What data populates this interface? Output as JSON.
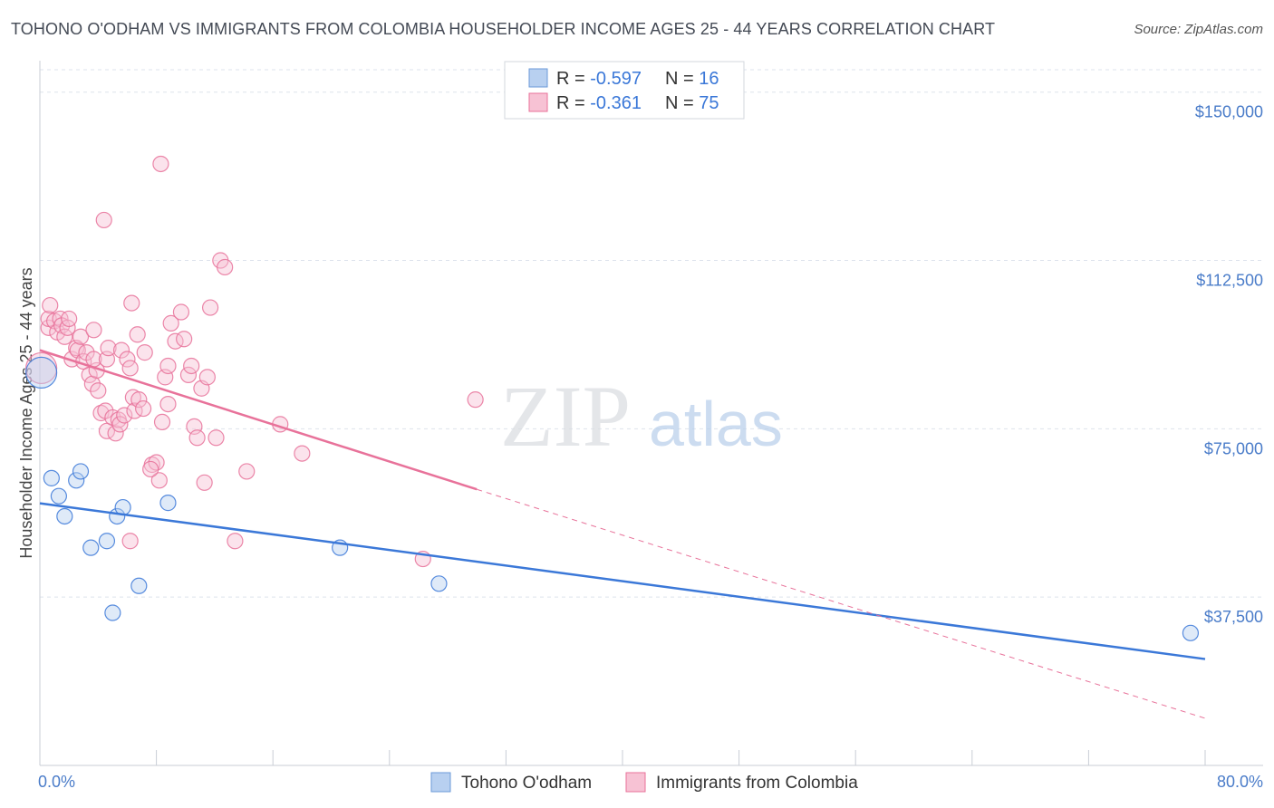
{
  "header": {
    "title": "TOHONO O'ODHAM VS IMMIGRANTS FROM COLOMBIA HOUSEHOLDER INCOME AGES 25 - 44 YEARS CORRELATION CHART",
    "source": "Source: ZipAtlas.com"
  },
  "watermark": {
    "zip": "ZIP",
    "atlas": "atlas"
  },
  "colors": {
    "blue": "#3b78d8",
    "blue_fill": "#b8d0f0",
    "pink": "#e8729a",
    "pink_fill": "#f7c2d4",
    "tick_label": "#4a7cc9",
    "grid": "#dde3ec"
  },
  "legend": {
    "rows": [
      {
        "r_label": "R = ",
        "r_value": "-0.597",
        "n_label": "N = ",
        "n_value": "16"
      },
      {
        "r_label": "R = ",
        "r_value": "-0.361",
        "n_label": "N = ",
        "n_value": "75"
      }
    ]
  },
  "chart_data": {
    "type": "scatter",
    "title": "TOHONO O'ODHAM VS IMMIGRANTS FROM COLOMBIA HOUSEHOLDER INCOME AGES 25 - 44 YEARS CORRELATION CHART",
    "xlabel": "",
    "ylabel": "Householder Income Ages 25 - 44 years",
    "xlim": [
      0,
      80
    ],
    "ylim": [
      0,
      157000
    ],
    "x_tick_labels": [
      "0.0%",
      "80.0%"
    ],
    "y_ticks": [
      37500,
      75000,
      112500,
      150000
    ],
    "y_tick_labels": [
      "$37,500",
      "$75,000",
      "$112,500",
      "$150,000"
    ],
    "grid": true,
    "legend_position": "top-center",
    "series": [
      {
        "name": "Tohono O'odham",
        "color": "#3b78d8",
        "points": [
          [
            0.1,
            87500
          ],
          [
            0.8,
            64000
          ],
          [
            1.3,
            60000
          ],
          [
            1.7,
            55500
          ],
          [
            2.5,
            63500
          ],
          [
            2.8,
            65500
          ],
          [
            3.5,
            48500
          ],
          [
            4.6,
            50000
          ],
          [
            5.3,
            55500
          ],
          [
            5.7,
            57500
          ],
          [
            6.8,
            40000
          ],
          [
            8.8,
            58500
          ],
          [
            5.0,
            34000
          ],
          [
            20.6,
            48500
          ],
          [
            27.4,
            40500
          ],
          [
            79.0,
            29500
          ]
        ],
        "trend": {
          "x": [
            0,
            80
          ],
          "y": [
            58400,
            23700
          ],
          "style": "solid"
        }
      },
      {
        "name": "Immigrants from Colombia",
        "color": "#e8729a",
        "points": [
          [
            0.1,
            88500
          ],
          [
            0.6,
            97500
          ],
          [
            0.6,
            99500
          ],
          [
            0.7,
            102500
          ],
          [
            1.0,
            99000
          ],
          [
            1.2,
            96500
          ],
          [
            1.4,
            99500
          ],
          [
            1.5,
            98000
          ],
          [
            1.7,
            95500
          ],
          [
            1.9,
            97500
          ],
          [
            2.0,
            99500
          ],
          [
            2.2,
            90500
          ],
          [
            2.5,
            93000
          ],
          [
            2.6,
            92500
          ],
          [
            2.8,
            95500
          ],
          [
            3.0,
            90000
          ],
          [
            3.2,
            92000
          ],
          [
            3.4,
            87000
          ],
          [
            3.6,
            85000
          ],
          [
            3.9,
            88000
          ],
          [
            3.7,
            90500
          ],
          [
            4.0,
            83500
          ],
          [
            4.2,
            78500
          ],
          [
            4.5,
            79000
          ],
          [
            4.6,
            74500
          ],
          [
            5.0,
            77500
          ],
          [
            5.2,
            74000
          ],
          [
            5.4,
            77000
          ],
          [
            5.5,
            76000
          ],
          [
            5.8,
            78000
          ],
          [
            4.6,
            90500
          ],
          [
            4.7,
            93000
          ],
          [
            5.6,
            92500
          ],
          [
            6.0,
            90500
          ],
          [
            6.2,
            88500
          ],
          [
            6.4,
            82000
          ],
          [
            6.5,
            79000
          ],
          [
            6.8,
            81500
          ],
          [
            7.1,
            79500
          ],
          [
            7.7,
            67000
          ],
          [
            8.0,
            67500
          ],
          [
            8.2,
            63500
          ],
          [
            8.4,
            76500
          ],
          [
            8.6,
            86500
          ],
          [
            8.8,
            89000
          ],
          [
            9.0,
            98500
          ],
          [
            9.3,
            94500
          ],
          [
            8.8,
            80500
          ],
          [
            9.7,
            101000
          ],
          [
            9.9,
            95000
          ],
          [
            10.2,
            87000
          ],
          [
            10.4,
            89000
          ],
          [
            10.6,
            75500
          ],
          [
            10.8,
            73000
          ],
          [
            11.1,
            84000
          ],
          [
            11.3,
            63000
          ],
          [
            11.5,
            86500
          ],
          [
            11.7,
            102000
          ],
          [
            12.1,
            73000
          ],
          [
            6.3,
            103000
          ],
          [
            6.7,
            96000
          ],
          [
            7.2,
            92000
          ],
          [
            7.6,
            66000
          ],
          [
            4.4,
            121500
          ],
          [
            8.3,
            134000
          ],
          [
            12.4,
            112500
          ],
          [
            12.7,
            111000
          ],
          [
            13.4,
            50000
          ],
          [
            14.2,
            65500
          ],
          [
            16.5,
            76000
          ],
          [
            18.0,
            69500
          ],
          [
            26.3,
            46000
          ],
          [
            29.9,
            81500
          ],
          [
            3.7,
            97000
          ],
          [
            6.2,
            50000
          ]
        ],
        "trend": {
          "x": [
            0,
            30
          ],
          "y": [
            92500,
            61500
          ],
          "style": "solid"
        },
        "trend_extension": {
          "x": [
            30,
            80
          ],
          "y": [
            61500,
            10500
          ],
          "style": "dashed"
        }
      }
    ]
  }
}
